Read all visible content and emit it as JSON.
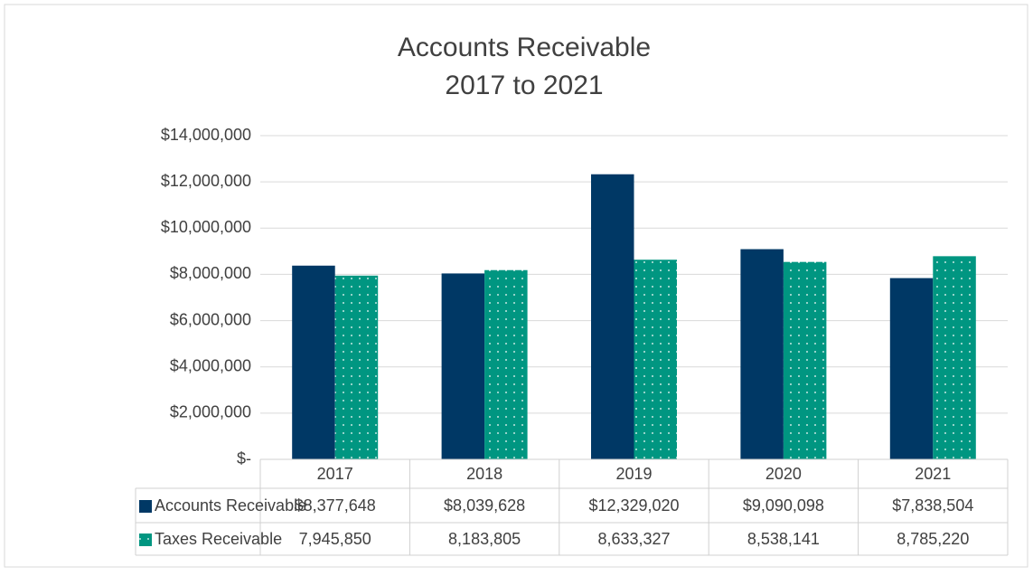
{
  "chart_data": {
    "type": "bar",
    "title": "Accounts Receivable",
    "subtitle": "2017 to 2021",
    "categories": [
      "2017",
      "2018",
      "2019",
      "2020",
      "2021"
    ],
    "series": [
      {
        "name": "Accounts Receivable",
        "color": "#003865",
        "pattern": "solid",
        "values": [
          8377648,
          8039628,
          12329020,
          9090098,
          7838504
        ],
        "value_labels": [
          "$8,377,648",
          "$8,039,628",
          "$12,329,020",
          "$9,090,098",
          "$7,838,504"
        ]
      },
      {
        "name": "Taxes Receivable",
        "color": "#009681",
        "pattern": "dots",
        "values": [
          7945850,
          8183805,
          8633327,
          8538141,
          8785220
        ],
        "value_labels": [
          "7,945,850",
          "8,183,805",
          "8,633,327",
          "8,538,141",
          "8,785,220"
        ]
      }
    ],
    "ylim": [
      0,
      14000000
    ],
    "yticks": [
      {
        "value": 0,
        "label": "$-"
      },
      {
        "value": 2000000,
        "label": "$2,000,000"
      },
      {
        "value": 4000000,
        "label": "$4,000,000"
      },
      {
        "value": 6000000,
        "label": "$6,000,000"
      },
      {
        "value": 8000000,
        "label": "$8,000,000"
      },
      {
        "value": 10000000,
        "label": "$10,000,000"
      },
      {
        "value": 12000000,
        "label": "$12,000,000"
      },
      {
        "value": 14000000,
        "label": "$14,000,000"
      }
    ],
    "grid": true,
    "data_table": true
  }
}
